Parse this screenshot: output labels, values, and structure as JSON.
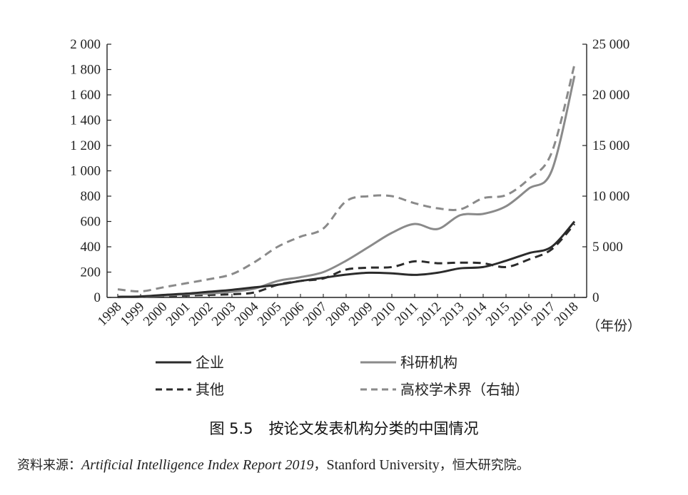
{
  "chart_data": {
    "type": "line",
    "categories": [
      "1998",
      "1999",
      "2000",
      "2001",
      "2002",
      "2003",
      "2004",
      "2005",
      "2006",
      "2007",
      "2008",
      "2009",
      "2010",
      "2011",
      "2012",
      "2013",
      "2014",
      "2015",
      "2016",
      "2017",
      "2018"
    ],
    "x_unit": "（年份）",
    "y_left": {
      "ylim": [
        0,
        2000
      ],
      "ticks": [
        0,
        200,
        400,
        600,
        800,
        1000,
        1200,
        1400,
        1600,
        1800,
        2000
      ],
      "tick_labels": [
        "0",
        "200",
        "400",
        "600",
        "800",
        "1 000",
        "1 200",
        "1 400",
        "1 600",
        "1 800",
        "2 000"
      ]
    },
    "y_right": {
      "ylim": [
        0,
        25000
      ],
      "ticks": [
        0,
        5000,
        10000,
        15000,
        20000,
        25000
      ],
      "tick_labels": [
        "0",
        "5 000",
        "10 000",
        "15 000",
        "20 000",
        "25 000"
      ]
    },
    "series": [
      {
        "name": "企业",
        "axis": "left",
        "style": "solid",
        "color": "#2b2b2b",
        "values": [
          5,
          8,
          20,
          30,
          45,
          60,
          80,
          100,
          130,
          155,
          180,
          195,
          190,
          178,
          195,
          230,
          240,
          290,
          350,
          400,
          600
        ]
      },
      {
        "name": "科研机构",
        "axis": "left",
        "style": "solid",
        "color": "#8a8a8a",
        "values": [
          3,
          5,
          15,
          25,
          30,
          45,
          70,
          130,
          160,
          200,
          290,
          400,
          510,
          580,
          540,
          650,
          660,
          720,
          860,
          1000,
          1750
        ]
      },
      {
        "name": "其他",
        "axis": "left",
        "style": "dashed",
        "color": "#2b2b2b",
        "values": [
          2,
          4,
          10,
          15,
          20,
          25,
          40,
          100,
          130,
          150,
          220,
          235,
          240,
          285,
          270,
          275,
          270,
          240,
          300,
          380,
          580
        ]
      },
      {
        "name": "高校学术界（右轴）",
        "axis": "right",
        "style": "dashed",
        "color": "#8a8a8a",
        "values": [
          800,
          600,
          1000,
          1400,
          1800,
          2300,
          3500,
          5000,
          6000,
          6800,
          9500,
          10000,
          10000,
          9300,
          8800,
          8700,
          9800,
          10100,
          11700,
          14300,
          23000
        ]
      }
    ]
  },
  "caption": {
    "number": "图 5.5",
    "title": "按论文发表机构分类的中国情况"
  },
  "source": {
    "prefix": "资料来源：",
    "title": "Artificial Intelligence Index Report 2019",
    "sep1": "，",
    "org": "Stanford University",
    "sep2": "，",
    "suffix": "恒大研究院。"
  }
}
